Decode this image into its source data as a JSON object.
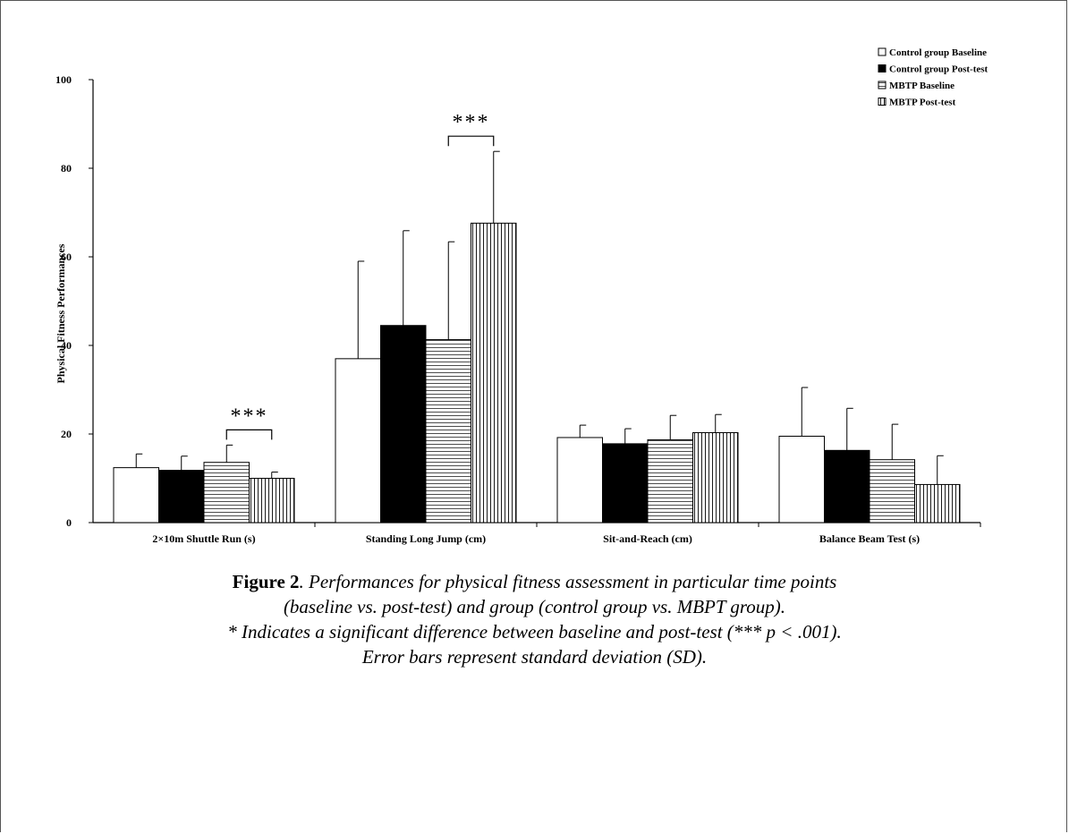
{
  "chart_data": {
    "type": "bar",
    "ylabel": "Physical Fitness Performances",
    "ylim": [
      0,
      100
    ],
    "yticks": [
      0,
      20,
      40,
      60,
      80,
      100
    ],
    "categories": [
      "2×10m Shuttle Run (s)",
      "Standing Long Jump (cm)",
      "Sit-and-Reach (cm)",
      "Balance Beam Test (s)"
    ],
    "series": [
      {
        "name": "Control group Baseline",
        "pattern": "white",
        "values": [
          12.4,
          37.0,
          19.2,
          19.5
        ],
        "sd": [
          3.1,
          22.0,
          2.8,
          11.0
        ]
      },
      {
        "name": "Control group Post-test",
        "pattern": "black",
        "values": [
          11.8,
          44.5,
          17.8,
          16.3
        ],
        "sd": [
          3.2,
          21.4,
          3.4,
          9.5
        ]
      },
      {
        "name": "MBTP Baseline",
        "pattern": "horizontal",
        "values": [
          13.6,
          41.3,
          18.7,
          14.2
        ],
        "sd": [
          3.9,
          22.1,
          5.5,
          8.0
        ]
      },
      {
        "name": "MBTP Post-test",
        "pattern": "vertical",
        "values": [
          10.0,
          67.6,
          20.3,
          8.6
        ],
        "sd": [
          1.4,
          16.2,
          4.1,
          6.5
        ]
      }
    ],
    "significance": [
      {
        "category": 0,
        "between": [
          2,
          3
        ],
        "label": "***"
      },
      {
        "category": 1,
        "between": [
          2,
          3
        ],
        "label": "***"
      }
    ],
    "legend_position": "top-right",
    "grid": false
  },
  "caption": {
    "figure_label": "Figure 2",
    "line1": ". Performances for physical fitness assessment in particular time points",
    "line2": "(baseline vs. post-test) and group (control group vs. MBPT group).",
    "line3": "* Indicates a significant difference between baseline and post-test (*** p < .001).",
    "line4": "Error bars represent standard deviation (SD)."
  }
}
